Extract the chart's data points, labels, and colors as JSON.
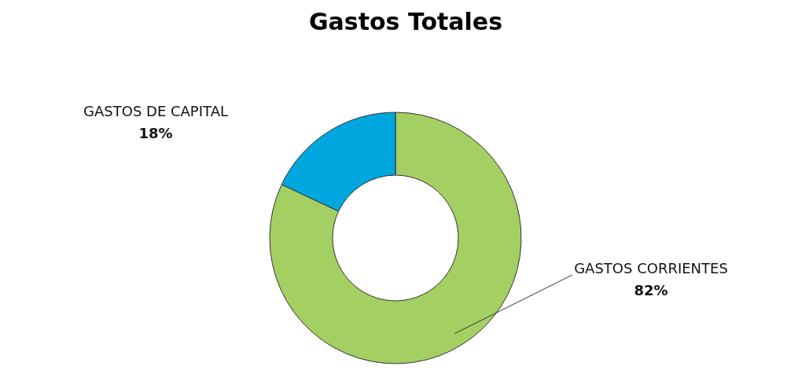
{
  "chart_data": {
    "type": "donut",
    "title": "Gastos Totales",
    "categories": [
      "GASTOS CORRIENTES",
      "GASTOS DE CAPITAL"
    ],
    "values": [
      82,
      18
    ],
    "colors": [
      "#a4cf63",
      "#00a6de"
    ],
    "value_labels": [
      "82%",
      "18%"
    ]
  }
}
